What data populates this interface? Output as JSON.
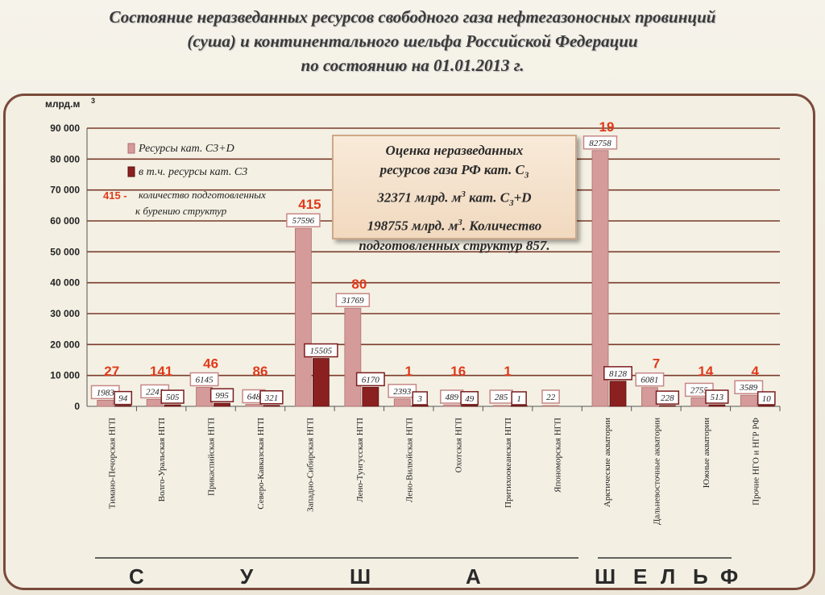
{
  "title": {
    "line1": "Состояние неразведанных ресурсов свободного газа нефтегазоносных провинций",
    "line2": "(суша) и континентального шельфа Российской Федерации",
    "line3": "по состоянию на 01.01.2013 г."
  },
  "callout": {
    "line1": "Оценка неразведанных",
    "line2_pre": "ресурсов газа РФ кат. С",
    "line2_sub": "3",
    "line3_a": "32371 млрд. м",
    "line3_sup": "3",
    "line3_b": " кат. С",
    "line3_sub": "3",
    "line3_c": "+D",
    "line4_a": "198755 млрд. м",
    "line4_sup": "3",
    "line4_b": ". Количество",
    "line5": "подготовленных структур 857."
  },
  "regions": {
    "land": [
      "С",
      "У",
      "Ш",
      "А"
    ],
    "shelf": [
      "Ш",
      "Е",
      "Л",
      "Ь",
      "Ф"
    ]
  },
  "colors": {
    "total": "#d59a9a",
    "c3": "#8b2020",
    "structures": "#e03a1a"
  },
  "chart_data": {
    "type": "bar",
    "ylabel": "млрд.м",
    "ylabel_sup": "3",
    "ylim": [
      0,
      90000
    ],
    "yticks": [
      "0",
      "10 000",
      "20 000",
      "30 000",
      "40 000",
      "50 000",
      "60 000",
      "70 000",
      "80 000",
      "90 000"
    ],
    "categories": [
      "Тимано-Печорская НГП",
      "Волго-Уральская НГП",
      "Прикаспийская НГП",
      "Северо-Кавказская НГП",
      "Западно-Сибирская НГП",
      "Лено-Тунгусская НГП",
      "Лено-Вилюйская НГП",
      "Охотская НГП",
      "Притихоокеанская НГП",
      "Япономорская НГП",
      "Арктические акватории",
      "Дальневосточные акватории",
      "Южные акватории",
      "Прочие НГО и НГР РФ"
    ],
    "series": [
      {
        "name": "Ресурсы кат. С3+D",
        "values": [
          1983,
          2241,
          6145,
          648,
          57596,
          31769,
          2393,
          489,
          285,
          22,
          82758,
          6081,
          2755,
          3589
        ]
      },
      {
        "name": "в т.ч. ресурсы кат. С3",
        "values": [
          94,
          505,
          995,
          321,
          15505,
          6170,
          3,
          49,
          1,
          null,
          8128,
          228,
          513,
          10
        ]
      }
    ],
    "structures": [
      "27",
      "141",
      "46",
      "86",
      "415",
      "80",
      "1",
      "16",
      "1",
      "",
      "19",
      "7",
      "14",
      "4"
    ],
    "legend": {
      "total": "Ресурсы кат. С3+D",
      "c3": "в т.ч. ресурсы кат. С3",
      "structures_key": "415 -",
      "structures_line1": "количество подготовленных",
      "structures_line2": "к бурению структур"
    }
  }
}
